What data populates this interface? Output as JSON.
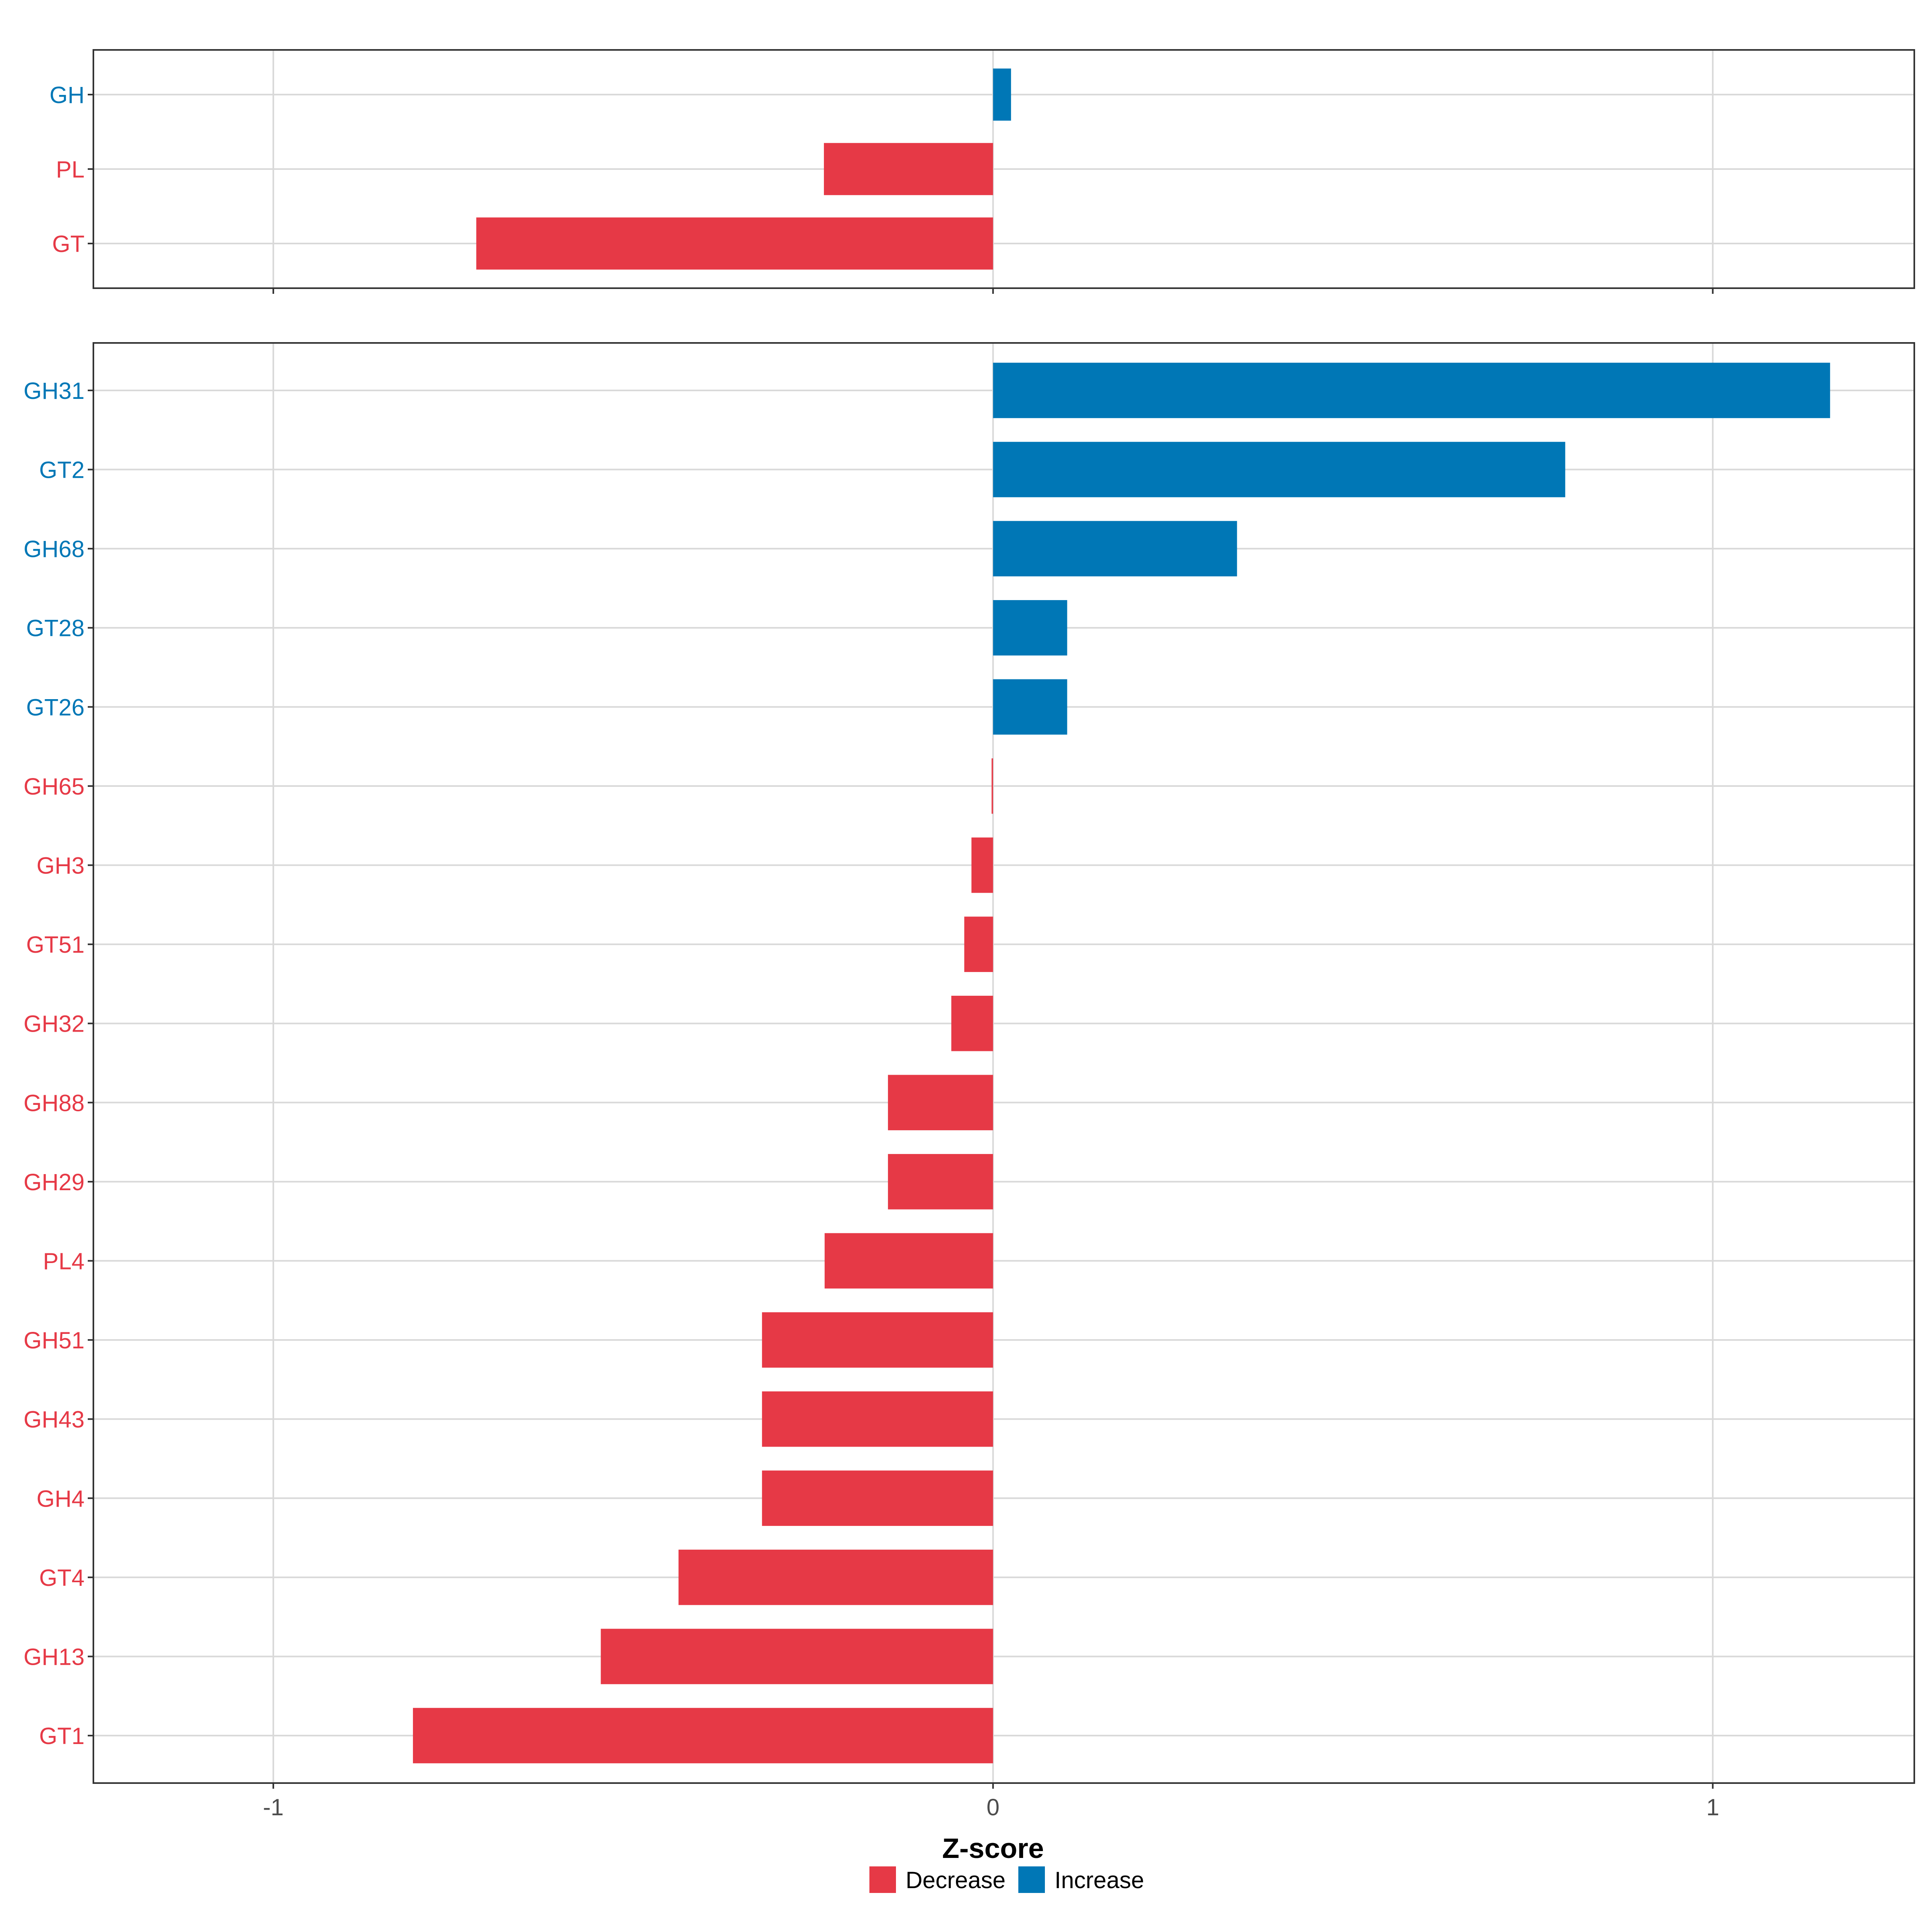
{
  "chart_data": {
    "type": "bar",
    "orientation": "horizontal",
    "xlabel": "Z-score",
    "xlim": [
      -1.25,
      1.28
    ],
    "x_ticks": [
      -1,
      0,
      1
    ],
    "x_tick_labels": [
      "-1",
      "0",
      "1"
    ],
    "grid": true,
    "legend_position": "bottom",
    "colors": {
      "Decrease": "#E63946",
      "Increase": "#0077B6"
    },
    "legend": [
      {
        "name": "Decrease",
        "color": "#E63946"
      },
      {
        "name": "Increase",
        "color": "#0077B6"
      }
    ],
    "panels": [
      {
        "name": "class",
        "categories": [
          "GH",
          "PL",
          "GT"
        ],
        "values": [
          0.025,
          -0.235,
          -0.718
        ],
        "groups": [
          "Increase",
          "Decrease",
          "Decrease"
        ]
      },
      {
        "name": "family",
        "categories": [
          "GH31",
          "GT2",
          "GH68",
          "GT28",
          "GT26",
          "GH65",
          "GH3",
          "GT51",
          "GH32",
          "GH88",
          "GH29",
          "PL4",
          "GH51",
          "GH43",
          "GH4",
          "GT4",
          "GH13",
          "GT1"
        ],
        "values": [
          1.163,
          0.795,
          0.339,
          0.103,
          0.103,
          -0.002,
          -0.03,
          -0.04,
          -0.058,
          -0.146,
          -0.146,
          -0.234,
          -0.321,
          -0.321,
          -0.321,
          -0.437,
          -0.545,
          -0.806
        ],
        "groups": [
          "Increase",
          "Increase",
          "Increase",
          "Increase",
          "Increase",
          "Decrease",
          "Decrease",
          "Decrease",
          "Decrease",
          "Decrease",
          "Decrease",
          "Decrease",
          "Decrease",
          "Decrease",
          "Decrease",
          "Decrease",
          "Decrease",
          "Decrease"
        ]
      }
    ]
  }
}
